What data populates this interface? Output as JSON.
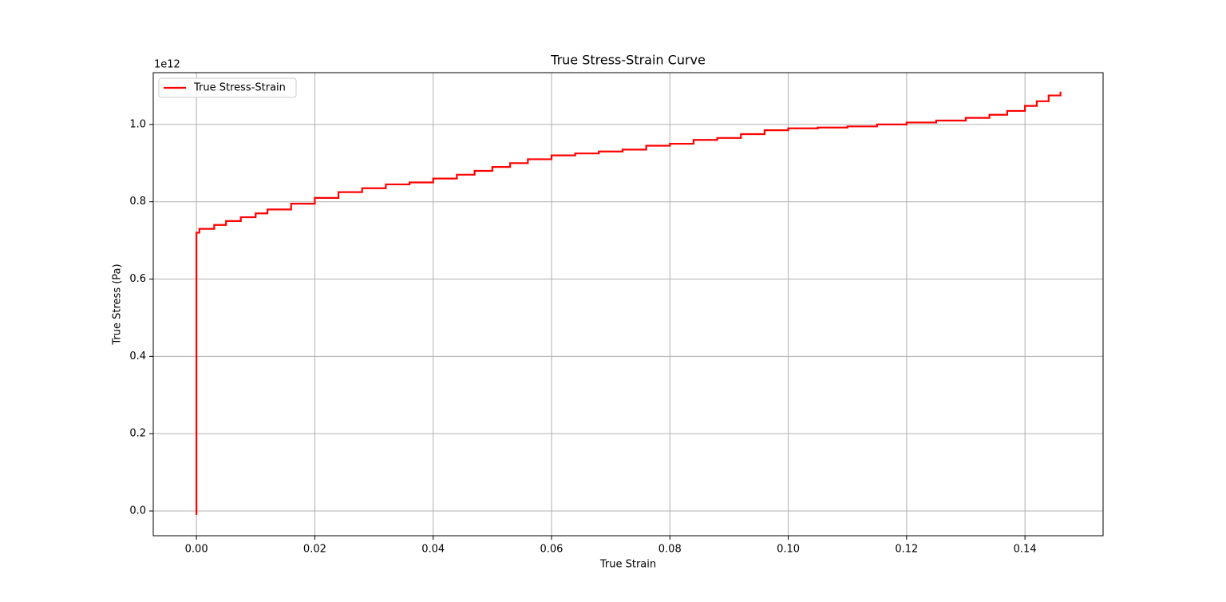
{
  "chart_data": {
    "type": "line",
    "title": "True Stress-Strain Curve",
    "x_label": "True Strain",
    "y_label": "True Stress (Pa)",
    "y_offset_label": "1e12",
    "drawstyle": "steps-post",
    "grid": true,
    "legend": "upper left",
    "x": [
      0,
      0,
      0.0005,
      0.003,
      0.005,
      0.0075,
      0.01,
      0.012,
      0.016,
      0.02,
      0.024,
      0.028,
      0.032,
      0.036,
      0.04,
      0.044,
      0.047,
      0.05,
      0.053,
      0.056,
      0.06,
      0.064,
      0.068,
      0.072,
      0.076,
      0.08,
      0.084,
      0.088,
      0.092,
      0.096,
      0.1,
      0.105,
      0.11,
      0.115,
      0.12,
      0.125,
      0.13,
      0.134,
      0.137,
      0.14,
      0.142,
      0.144,
      0.146
    ],
    "series": [
      {
        "name": "True Stress-Strain",
        "color": "#ff0000",
        "values": [
          -0.01,
          0.72,
          0.73,
          0.74,
          0.75,
          0.76,
          0.77,
          0.78,
          0.795,
          0.81,
          0.825,
          0.835,
          0.845,
          0.85,
          0.86,
          0.87,
          0.88,
          0.89,
          0.9,
          0.91,
          0.92,
          0.925,
          0.93,
          0.935,
          0.945,
          0.95,
          0.96,
          0.965,
          0.975,
          0.985,
          0.99,
          0.992,
          0.995,
          1.0,
          1.005,
          1.01,
          1.017,
          1.025,
          1.035,
          1.048,
          1.06,
          1.075,
          1.085
        ]
      }
    ],
    "xlim": [
      -0.0073,
      0.1532
    ],
    "ylim": [
      -0.064,
      1.134
    ],
    "xticks": [
      {
        "value": 0,
        "label": "0.00"
      },
      0.02,
      0.04,
      0.06,
      0.08,
      {
        "value": 0.1,
        "label": "0.10"
      },
      0.12,
      0.14
    ],
    "yticks": [
      {
        "value": 0,
        "label": "0.0"
      },
      0.2,
      0.4,
      0.6,
      0.8,
      {
        "value": 1,
        "label": "1.0"
      }
    ]
  }
}
